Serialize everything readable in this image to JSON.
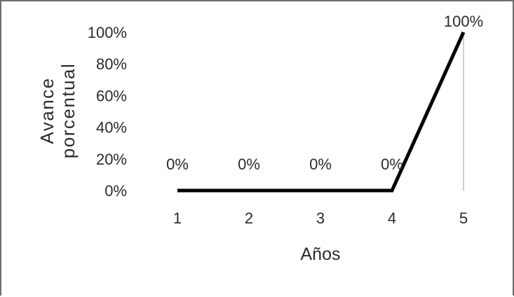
{
  "chart_data": {
    "type": "line",
    "title": "",
    "xlabel": "Años",
    "ylabel": "Avance porcentual",
    "ylabel_lines": [
      "Avance",
      "porcentual"
    ],
    "categories": [
      "1",
      "2",
      "3",
      "4",
      "5"
    ],
    "series": [
      {
        "values": [
          0,
          0,
          0,
          0,
          100
        ],
        "data_labels": [
          "0%",
          "0%",
          "0%",
          "0%",
          "100%"
        ],
        "color": "#000000"
      }
    ],
    "y_ticks": [
      "0%",
      "20%",
      "40%",
      "60%",
      "80%",
      "100%"
    ],
    "ylim": [
      0,
      100
    ],
    "grid": false,
    "legend": "none",
    "reference_line": {
      "x": "5",
      "color": "#bfbfbf"
    }
  }
}
